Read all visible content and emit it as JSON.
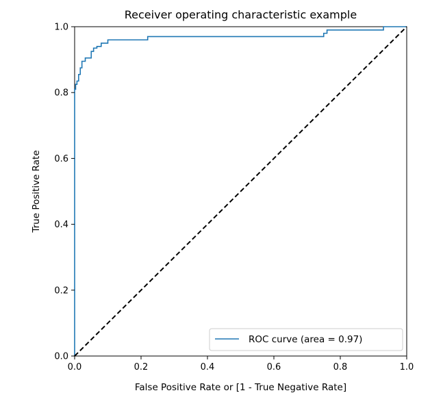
{
  "chart_data": {
    "type": "line",
    "title": "Receiver operating characteristic example",
    "xlabel": "False Positive Rate or [1 - True Negative Rate]",
    "ylabel": "True Positive Rate",
    "xlim": [
      0.0,
      1.0
    ],
    "ylim": [
      0.0,
      1.0
    ],
    "xticks": [
      {
        "value": 0.0,
        "label": "0.0"
      },
      {
        "value": 0.2,
        "label": "0.2"
      },
      {
        "value": 0.4,
        "label": "0.4"
      },
      {
        "value": 0.6,
        "label": "0.6"
      },
      {
        "value": 0.8,
        "label": "0.8"
      },
      {
        "value": 1.0,
        "label": "1.0"
      }
    ],
    "yticks": [
      {
        "value": 0.0,
        "label": "0.0"
      },
      {
        "value": 0.2,
        "label": "0.2"
      },
      {
        "value": 0.4,
        "label": "0.4"
      },
      {
        "value": 0.6,
        "label": "0.6"
      },
      {
        "value": 0.8,
        "label": "0.8"
      },
      {
        "value": 1.0,
        "label": "1.0"
      }
    ],
    "grid": false,
    "legend_position": "lower-right",
    "series": [
      {
        "name": "ROC curve (area = 0.97)",
        "color": "#1f77b4",
        "style": "solid",
        "x": [
          0.0,
          0.0,
          0.003,
          0.003,
          0.007,
          0.007,
          0.012,
          0.012,
          0.017,
          0.017,
          0.022,
          0.022,
          0.032,
          0.032,
          0.05,
          0.05,
          0.057,
          0.057,
          0.067,
          0.067,
          0.08,
          0.08,
          0.1,
          0.1,
          0.22,
          0.22,
          0.75,
          0.75,
          0.76,
          0.76,
          0.93,
          0.93,
          1.0
        ],
        "y": [
          0.0,
          0.81,
          0.81,
          0.825,
          0.825,
          0.835,
          0.835,
          0.855,
          0.855,
          0.875,
          0.875,
          0.895,
          0.895,
          0.905,
          0.905,
          0.925,
          0.925,
          0.935,
          0.935,
          0.94,
          0.94,
          0.95,
          0.95,
          0.96,
          0.96,
          0.97,
          0.97,
          0.98,
          0.98,
          0.99,
          0.99,
          1.0,
          1.0
        ]
      },
      {
        "name": "",
        "color": "#000000",
        "style": "dashed",
        "x": [
          0.0,
          1.0
        ],
        "y": [
          0.0,
          1.0
        ]
      }
    ]
  }
}
